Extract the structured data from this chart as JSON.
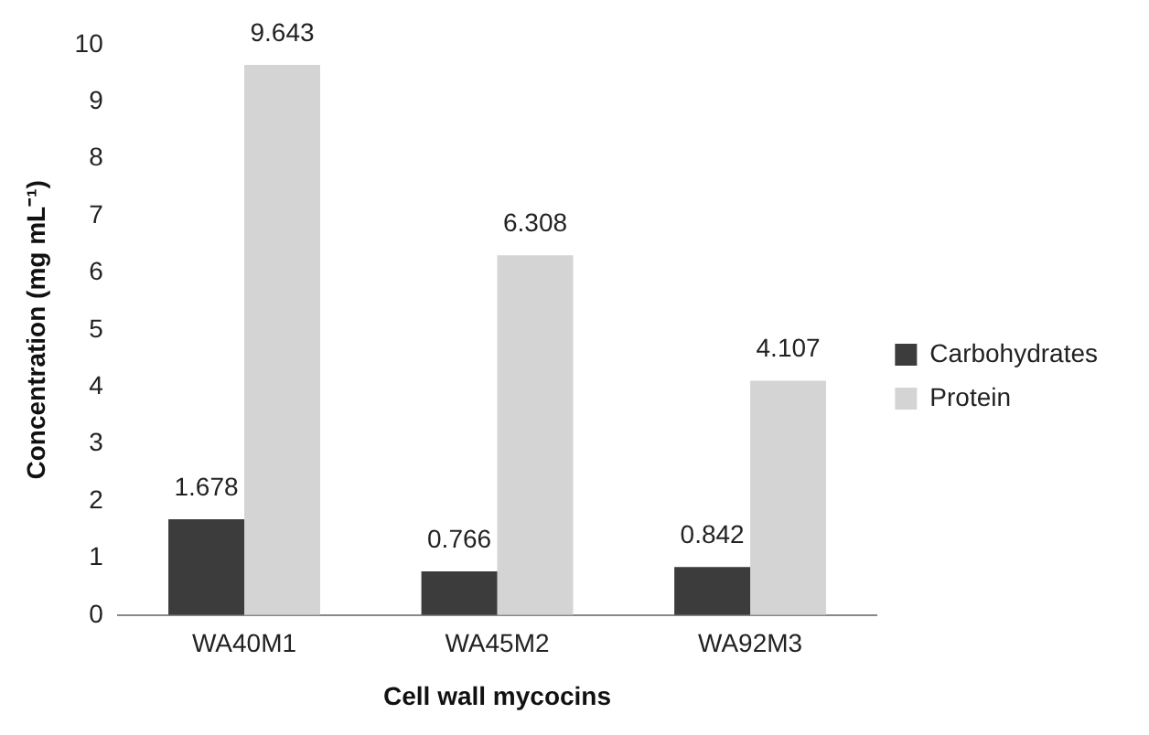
{
  "chart_data": {
    "type": "bar",
    "xlabel": "Cell wall mycocins",
    "ylabel": "Concentration (mg mL⁻¹)",
    "categories": [
      "WA40M1",
      "WA45M2",
      "WA92M3"
    ],
    "series": [
      {
        "name": "Carbohydrates",
        "color": "#3c3c3c",
        "values": [
          1.678,
          0.766,
          0.842
        ]
      },
      {
        "name": "Protein",
        "color": "#d4d4d4",
        "values": [
          9.643,
          6.308,
          4.107
        ]
      }
    ],
    "ylim": [
      0,
      10
    ],
    "yticks": [
      0,
      1,
      2,
      3,
      4,
      5,
      6,
      7,
      8,
      9,
      10
    ],
    "grid": false,
    "legend": "right",
    "data_labels": true
  }
}
